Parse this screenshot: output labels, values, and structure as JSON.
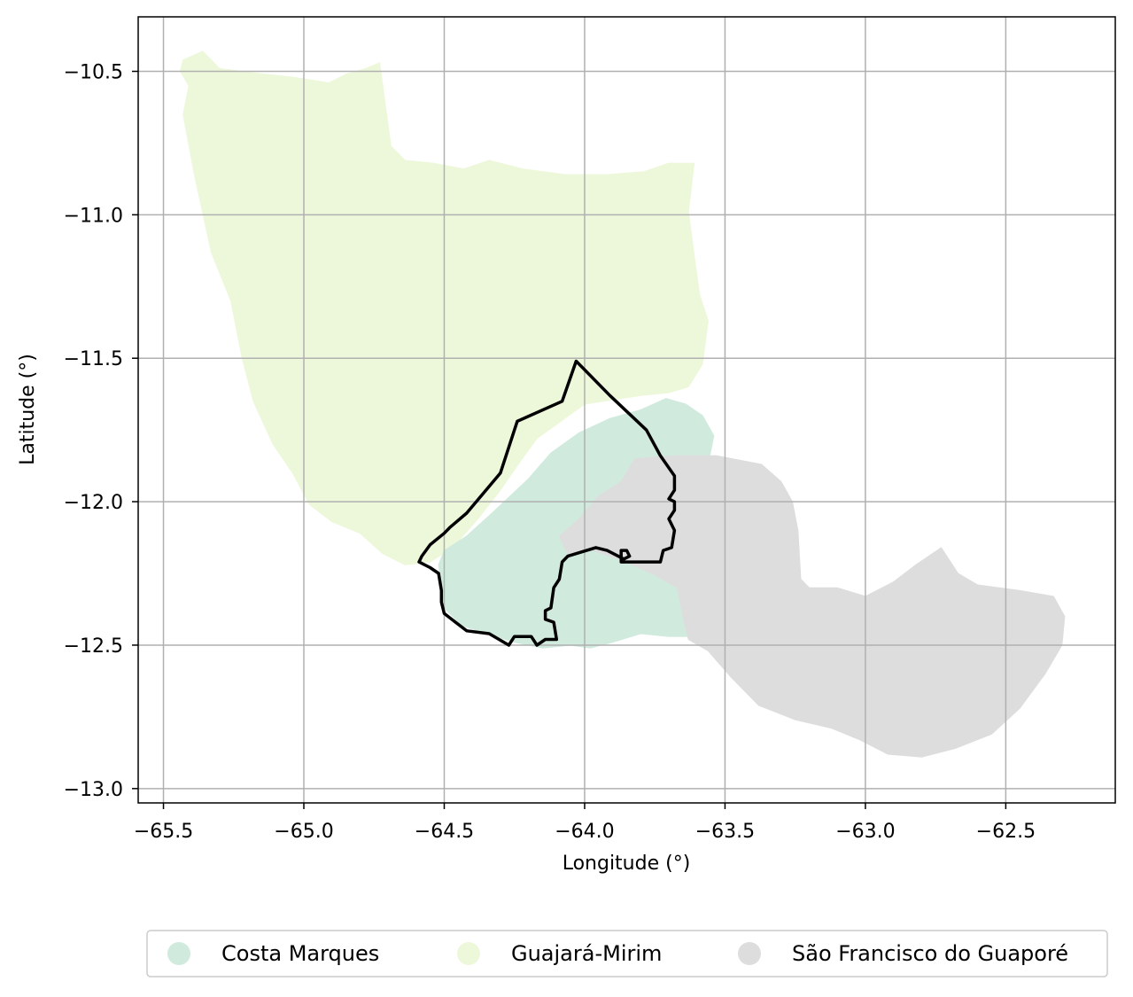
{
  "chart_data": {
    "type": "map",
    "title": "",
    "xlabel": "Longitude (°)",
    "ylabel": "Latitude (°)",
    "xlim": [
      -65.59,
      -62.11
    ],
    "ylim": [
      -13.05,
      -10.31
    ],
    "xticks": [
      -65.5,
      -65.0,
      -64.5,
      -64.0,
      -63.5,
      -63.0,
      -62.5
    ],
    "yticks": [
      -10.5,
      -11.0,
      -11.5,
      -12.0,
      -12.5,
      -13.0
    ],
    "xtick_labels": [
      "−65.5",
      "−65.0",
      "−64.5",
      "−64.0",
      "−63.5",
      "−63.0",
      "−62.5"
    ],
    "ytick_labels": [
      "−10.5",
      "−11.0",
      "−11.5",
      "−12.0",
      "−12.5",
      "−13.0"
    ],
    "grid": true,
    "legend_position": "bottom",
    "regions": [
      {
        "name": "Guajará-Mirim",
        "color": "#edf8db",
        "polygon": [
          [
            -65.43,
            -10.46
          ],
          [
            -65.36,
            -10.43
          ],
          [
            -65.3,
            -10.49
          ],
          [
            -65.14,
            -10.51
          ],
          [
            -65.04,
            -10.52
          ],
          [
            -64.91,
            -10.54
          ],
          [
            -64.85,
            -10.51
          ],
          [
            -64.78,
            -10.49
          ],
          [
            -64.73,
            -10.47
          ],
          [
            -64.69,
            -10.76
          ],
          [
            -64.64,
            -10.81
          ],
          [
            -64.54,
            -10.82
          ],
          [
            -64.43,
            -10.84
          ],
          [
            -64.34,
            -10.81
          ],
          [
            -64.22,
            -10.84
          ],
          [
            -64.07,
            -10.86
          ],
          [
            -63.92,
            -10.86
          ],
          [
            -63.79,
            -10.85
          ],
          [
            -63.7,
            -10.82
          ],
          [
            -63.61,
            -10.82
          ],
          [
            -63.63,
            -10.99
          ],
          [
            -63.61,
            -11.14
          ],
          [
            -63.59,
            -11.28
          ],
          [
            -63.56,
            -11.37
          ],
          [
            -63.58,
            -11.52
          ],
          [
            -63.63,
            -11.6
          ],
          [
            -63.7,
            -11.62
          ],
          [
            -63.8,
            -11.63
          ],
          [
            -64.0,
            -11.66
          ],
          [
            -64.17,
            -11.78
          ],
          [
            -64.23,
            -11.86
          ],
          [
            -64.3,
            -11.96
          ],
          [
            -64.38,
            -12.06
          ],
          [
            -64.47,
            -12.16
          ],
          [
            -64.55,
            -12.21
          ],
          [
            -64.64,
            -12.22
          ],
          [
            -64.72,
            -12.18
          ],
          [
            -64.8,
            -12.11
          ],
          [
            -64.9,
            -12.07
          ],
          [
            -64.98,
            -12.01
          ],
          [
            -65.04,
            -11.9
          ],
          [
            -65.11,
            -11.8
          ],
          [
            -65.18,
            -11.65
          ],
          [
            -65.22,
            -11.5
          ],
          [
            -65.26,
            -11.3
          ],
          [
            -65.33,
            -11.13
          ],
          [
            -65.39,
            -10.86
          ],
          [
            -65.43,
            -10.65
          ],
          [
            -65.41,
            -10.55
          ],
          [
            -65.44,
            -10.5
          ]
        ]
      },
      {
        "name": "Costa Marques",
        "color": "#d0ebdd",
        "polygon": [
          [
            -64.52,
            -12.22
          ],
          [
            -64.5,
            -12.17
          ],
          [
            -64.42,
            -12.12
          ],
          [
            -64.33,
            -12.04
          ],
          [
            -64.2,
            -11.92
          ],
          [
            -64.12,
            -11.83
          ],
          [
            -64.02,
            -11.76
          ],
          [
            -63.91,
            -11.71
          ],
          [
            -63.8,
            -11.68
          ],
          [
            -63.71,
            -11.64
          ],
          [
            -63.64,
            -11.66
          ],
          [
            -63.58,
            -11.7
          ],
          [
            -63.54,
            -11.77
          ],
          [
            -63.56,
            -11.87
          ],
          [
            -63.61,
            -11.96
          ],
          [
            -63.66,
            -12.08
          ],
          [
            -63.65,
            -12.22
          ],
          [
            -63.63,
            -12.35
          ],
          [
            -63.55,
            -12.37
          ],
          [
            -63.52,
            -12.44
          ],
          [
            -63.57,
            -12.47
          ],
          [
            -63.7,
            -12.47
          ],
          [
            -63.8,
            -12.46
          ],
          [
            -63.9,
            -12.49
          ],
          [
            -63.98,
            -12.51
          ],
          [
            -64.05,
            -12.5
          ],
          [
            -64.15,
            -12.51
          ],
          [
            -64.25,
            -12.49
          ],
          [
            -64.35,
            -12.46
          ],
          [
            -64.44,
            -12.43
          ],
          [
            -64.5,
            -12.37
          ],
          [
            -64.51,
            -12.29
          ]
        ]
      },
      {
        "name": "São Francisco do Guaporé",
        "color": "#dddddd",
        "polygon": [
          [
            -63.82,
            -11.85
          ],
          [
            -63.68,
            -11.84
          ],
          [
            -63.53,
            -11.84
          ],
          [
            -63.37,
            -11.87
          ],
          [
            -63.3,
            -11.93
          ],
          [
            -63.26,
            -12.0
          ],
          [
            -63.24,
            -12.1
          ],
          [
            -63.23,
            -12.27
          ],
          [
            -63.2,
            -12.3
          ],
          [
            -63.1,
            -12.3
          ],
          [
            -63.0,
            -12.33
          ],
          [
            -62.9,
            -12.28
          ],
          [
            -62.82,
            -12.22
          ],
          [
            -62.73,
            -12.16
          ],
          [
            -62.67,
            -12.25
          ],
          [
            -62.6,
            -12.29
          ],
          [
            -62.45,
            -12.31
          ],
          [
            -62.33,
            -12.33
          ],
          [
            -62.29,
            -12.4
          ],
          [
            -62.3,
            -12.5
          ],
          [
            -62.36,
            -12.6
          ],
          [
            -62.45,
            -12.72
          ],
          [
            -62.55,
            -12.81
          ],
          [
            -62.68,
            -12.86
          ],
          [
            -62.8,
            -12.89
          ],
          [
            -62.92,
            -12.88
          ],
          [
            -63.02,
            -12.83
          ],
          [
            -63.12,
            -12.79
          ],
          [
            -63.25,
            -12.76
          ],
          [
            -63.38,
            -12.71
          ],
          [
            -63.48,
            -12.61
          ],
          [
            -63.56,
            -12.52
          ],
          [
            -63.63,
            -12.48
          ],
          [
            -63.65,
            -12.4
          ],
          [
            -63.67,
            -12.3
          ],
          [
            -63.76,
            -12.25
          ],
          [
            -63.88,
            -12.2
          ],
          [
            -63.97,
            -12.17
          ],
          [
            -64.06,
            -12.18
          ],
          [
            -64.09,
            -12.12
          ],
          [
            -64.02,
            -12.06
          ],
          [
            -63.95,
            -11.98
          ],
          [
            -63.87,
            -11.93
          ]
        ]
      }
    ],
    "outline": {
      "name": "",
      "color": "#000000",
      "polygon": [
        [
          -64.03,
          -11.51
        ],
        [
          -63.91,
          -11.63
        ],
        [
          -63.78,
          -11.75
        ],
        [
          -63.73,
          -11.84
        ],
        [
          -63.68,
          -11.91
        ],
        [
          -63.68,
          -11.96
        ],
        [
          -63.7,
          -11.99
        ],
        [
          -63.68,
          -12.0
        ],
        [
          -63.68,
          -12.03
        ],
        [
          -63.7,
          -12.06
        ],
        [
          -63.68,
          -12.1
        ],
        [
          -63.69,
          -12.16
        ],
        [
          -63.72,
          -12.17
        ],
        [
          -63.73,
          -12.21
        ],
        [
          -63.87,
          -12.21
        ],
        [
          -63.87,
          -12.17
        ],
        [
          -63.85,
          -12.17
        ],
        [
          -63.84,
          -12.19
        ],
        [
          -63.86,
          -12.2
        ],
        [
          -63.92,
          -12.17
        ],
        [
          -63.96,
          -12.16
        ],
        [
          -64.06,
          -12.19
        ],
        [
          -64.08,
          -12.21
        ],
        [
          -64.09,
          -12.27
        ],
        [
          -64.11,
          -12.3
        ],
        [
          -64.12,
          -12.37
        ],
        [
          -64.14,
          -12.38
        ],
        [
          -64.14,
          -12.41
        ],
        [
          -64.11,
          -12.42
        ],
        [
          -64.1,
          -12.48
        ],
        [
          -64.14,
          -12.48
        ],
        [
          -64.17,
          -12.5
        ],
        [
          -64.19,
          -12.47
        ],
        [
          -64.25,
          -12.47
        ],
        [
          -64.27,
          -12.5
        ],
        [
          -64.34,
          -12.46
        ],
        [
          -64.42,
          -12.45
        ],
        [
          -64.46,
          -12.42
        ],
        [
          -64.5,
          -12.39
        ],
        [
          -64.51,
          -12.35
        ],
        [
          -64.51,
          -12.31
        ],
        [
          -64.52,
          -12.25
        ],
        [
          -64.55,
          -12.23
        ],
        [
          -64.59,
          -12.21
        ],
        [
          -64.58,
          -12.19
        ],
        [
          -64.55,
          -12.15
        ],
        [
          -64.5,
          -12.11
        ],
        [
          -64.48,
          -12.09
        ],
        [
          -64.42,
          -12.04
        ],
        [
          -64.3,
          -11.9
        ],
        [
          -64.24,
          -11.72
        ],
        [
          -64.08,
          -11.65
        ]
      ]
    },
    "legend": [
      {
        "label": "Costa Marques",
        "color": "#d0ebdd"
      },
      {
        "label": "Guajará-Mirim",
        "color": "#edf8db"
      },
      {
        "label": "São Francisco do Guaporé",
        "color": "#dddddd"
      }
    ]
  }
}
